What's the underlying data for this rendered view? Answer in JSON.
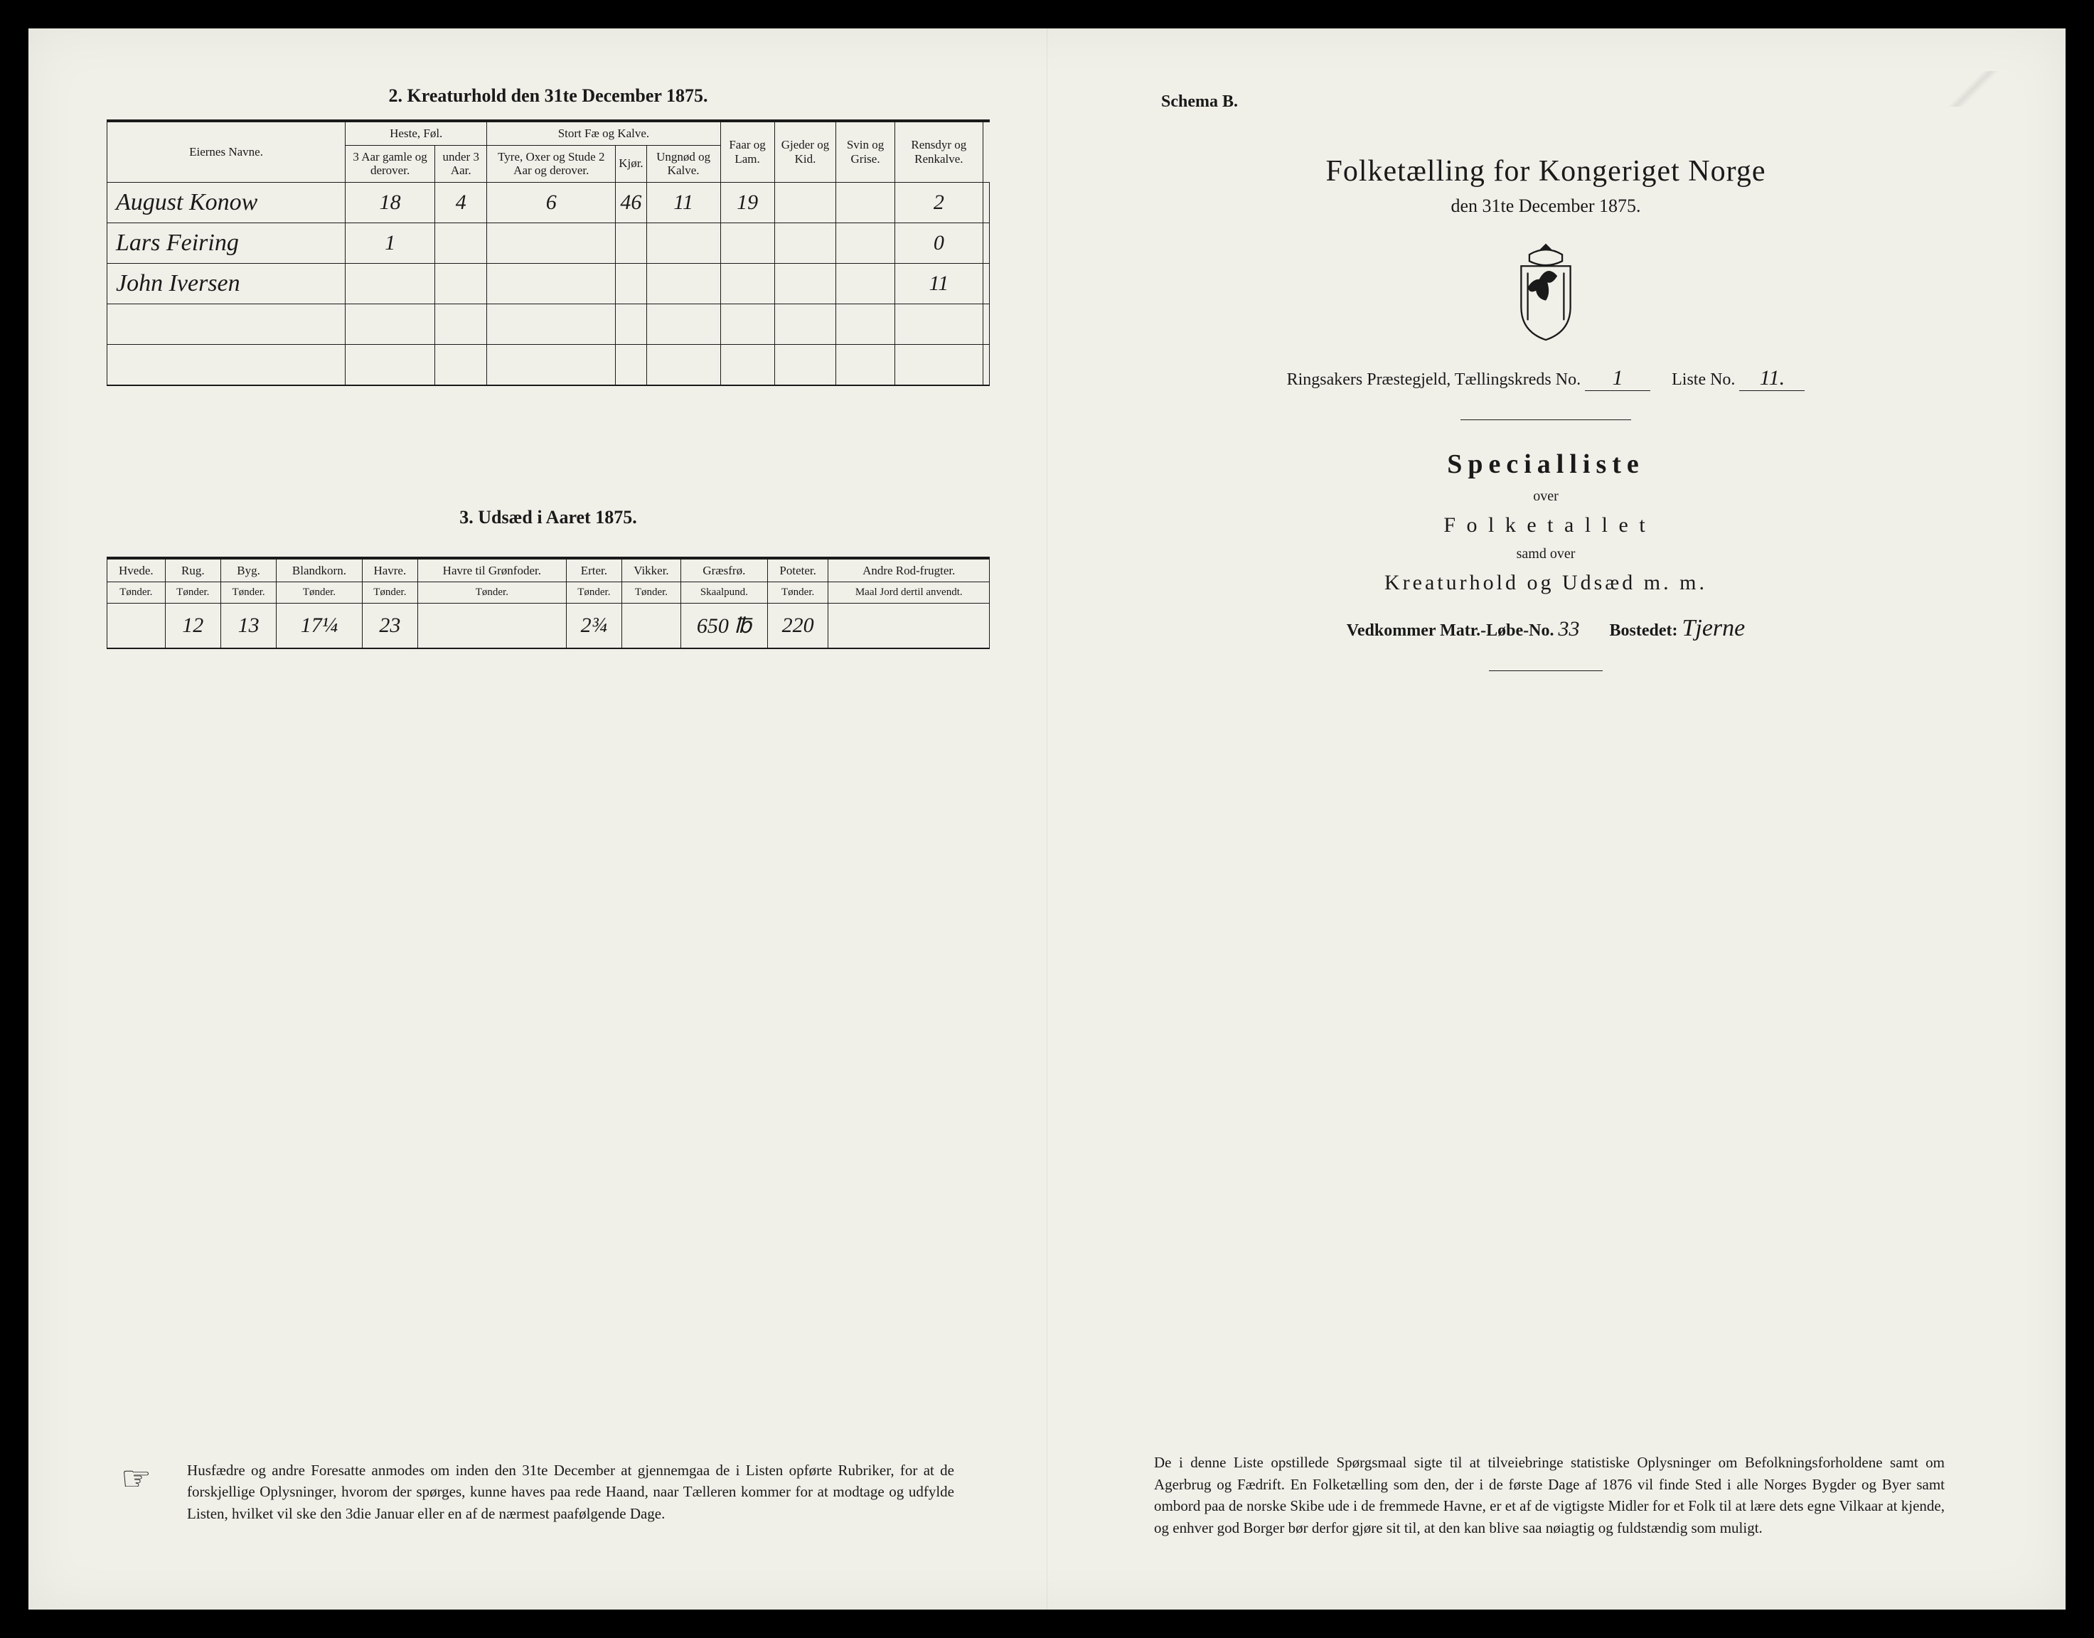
{
  "left": {
    "section2_title": "2.  Kreaturhold den 31te December 1875.",
    "table1": {
      "group_headers": [
        "",
        "Heste, Føl.",
        "Stort Fæ og Kalve.",
        "",
        "",
        "",
        ""
      ],
      "headers": [
        "Eiernes Navne.",
        "3 Aar gamle og derover.",
        "under 3 Aar.",
        "Tyre, Oxer og Stude 2 Aar og derover.",
        "Kjør.",
        "Ungnød og Kalve.",
        "Faar og Lam.",
        "Gjeder og Kid.",
        "Svin og Grise.",
        "Rensdyr og Renkalve."
      ],
      "rows": [
        {
          "name": "August Konow",
          "c": [
            "18",
            "4",
            "6",
            "46",
            "11",
            "19",
            "",
            "",
            "2",
            ""
          ]
        },
        {
          "name": "Lars Feiring",
          "c": [
            "1",
            "",
            "",
            "",
            "",
            "",
            "",
            "",
            "0",
            ""
          ]
        },
        {
          "name": "John Iversen",
          "c": [
            "",
            "",
            "",
            "",
            "",
            "",
            "",
            "",
            "11",
            ""
          ]
        },
        {
          "name": "",
          "c": [
            "",
            "",
            "",
            "",
            "",
            "",
            "",
            "",
            "",
            ""
          ]
        },
        {
          "name": "",
          "c": [
            "",
            "",
            "",
            "",
            "",
            "",
            "",
            "",
            "",
            ""
          ]
        }
      ]
    },
    "section3_title": "3.  Udsæd i Aaret 1875.",
    "table2": {
      "headers": [
        "Hvede.",
        "Rug.",
        "Byg.",
        "Blandkorn.",
        "Havre.",
        "Havre til Grønfoder.",
        "Erter.",
        "Vikker.",
        "Græsfrø.",
        "Poteter.",
        "Andre Rod-frugter."
      ],
      "units": [
        "Tønder.",
        "Tønder.",
        "Tønder.",
        "Tønder.",
        "Tønder.",
        "Tønder.",
        "Tønder.",
        "Tønder.",
        "Skaalpund.",
        "Tønder.",
        "Maal Jord dertil anvendt."
      ],
      "row": [
        "",
        "12",
        "13",
        "17¼",
        "23",
        "",
        "2¾",
        "",
        "650 ℔",
        "220",
        ""
      ]
    },
    "footnote": "Husfædre og andre Foresatte anmodes om inden den 31te December at gjennemgaa de i Listen opførte Rubriker, for at de forskjellige Oplysninger, hvorom der spørges, kunne haves paa rede Haand, naar Tælleren kommer for at modtage og udfylde Listen, hvilket vil ske den 3die Januar eller en af de nærmest paafølgende Dage."
  },
  "right": {
    "schema": "Schema B.",
    "title": "Folketælling for Kongeriget Norge",
    "subtitle": "den 31te December 1875.",
    "meta_prefix": "Ringsakers Præstegjeld,  Tællingskreds No.",
    "meta_kreds": "1",
    "meta_liste_lbl": "Liste No.",
    "meta_liste": "11.",
    "special": "Specialliste",
    "over": "over",
    "folketallet": "F o l k e t a l l e t",
    "samt": "samd over",
    "kreatur": "Kreaturhold og Udsæd m. m.",
    "vedk_lbl": "Vedkommer Matr.-Løbe-No.",
    "vedk_no": "33",
    "bostedet_lbl": "Bostedet:",
    "bostedet": "Tjerne",
    "footnote": "De i denne Liste opstillede Spørgsmaal sigte til at tilveiebringe statistiske Oplysninger om Befolkningsforholdene samt om Agerbrug og Fædrift.  En Folketælling som den, der i de første Dage af 1876 vil finde Sted i alle Norges Bygder og Byer samt ombord paa de norske Skibe ude i de fremmede Havne, er et af de vigtigste Midler for et Folk til at lære dets egne Vilkaar at kjende, og enhver god Borger bør derfor gjøre sit til, at den kan blive saa nøiagtig og fuldstændig som muligt."
  },
  "colors": {
    "paper": "#f0efe8",
    "ink": "#1a1a1a",
    "frame": "#000000"
  }
}
